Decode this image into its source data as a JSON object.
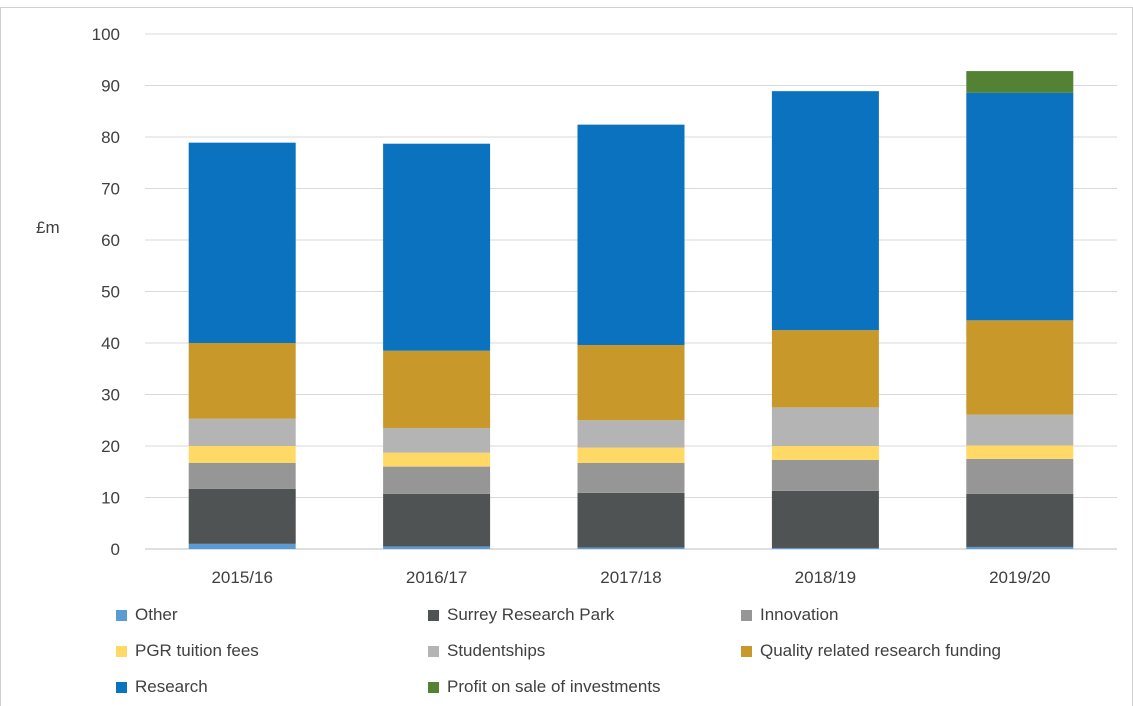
{
  "chart_data": {
    "type": "bar",
    "stacked": true,
    "categories": [
      "2015/16",
      "2016/17",
      "2017/18",
      "2018/19",
      "2019/20"
    ],
    "ylabel": "£m",
    "ylim": [
      0,
      100
    ],
    "yticks": [
      0,
      10,
      20,
      30,
      40,
      50,
      60,
      70,
      80,
      90,
      100
    ],
    "grid": true,
    "legend_position": "bottom",
    "series": [
      {
        "name": "Other",
        "color": "#5b9bd5",
        "values": [
          1.0,
          0.5,
          0.3,
          0.2,
          0.4
        ]
      },
      {
        "name": "Surrey Research Park",
        "color": "#4f5353",
        "values": [
          10.7,
          10.2,
          10.6,
          11.1,
          10.3
        ]
      },
      {
        "name": "Innovation",
        "color": "#969696",
        "values": [
          5.0,
          5.3,
          5.8,
          6.0,
          6.8
        ]
      },
      {
        "name": "PGR tuition fees",
        "color": "#ffd966",
        "values": [
          3.3,
          2.7,
          3.0,
          2.7,
          2.6
        ]
      },
      {
        "name": "Studentships",
        "color": "#b4b4b4",
        "values": [
          5.3,
          4.8,
          5.3,
          7.5,
          6.0
        ]
      },
      {
        "name": "Quality related research funding",
        "color": "#c9982a",
        "values": [
          14.7,
          15.0,
          14.6,
          15.0,
          18.3
        ]
      },
      {
        "name": "Research",
        "color": "#0a72bf",
        "values": [
          38.9,
          40.2,
          42.8,
          46.4,
          44.2
        ]
      },
      {
        "name": "Profit on sale of investments",
        "color": "#548235",
        "values": [
          0,
          0,
          0,
          0,
          4.2
        ]
      }
    ]
  }
}
